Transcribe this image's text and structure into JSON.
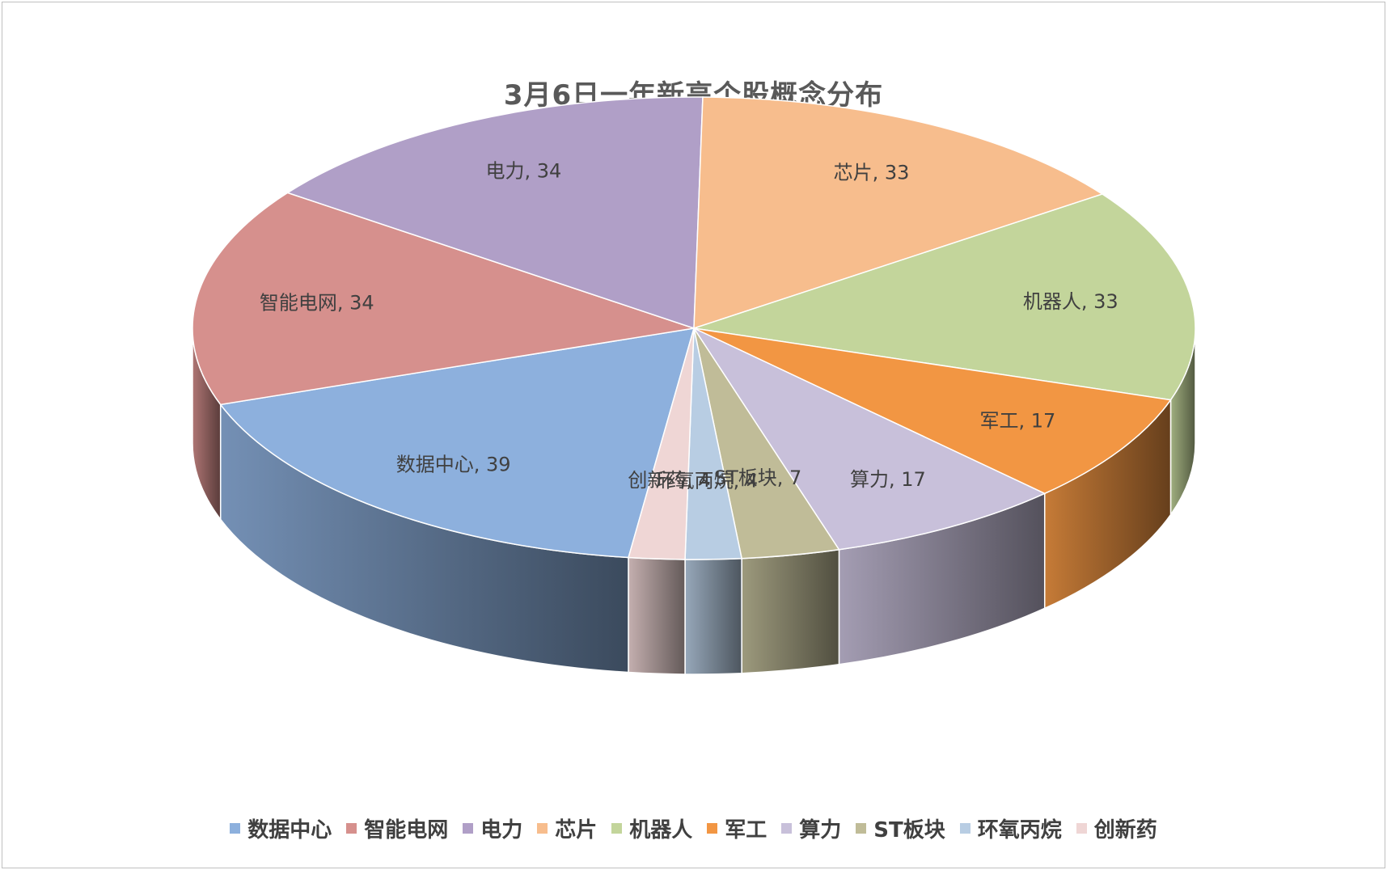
{
  "chart_data": {
    "type": "pie",
    "title": "3月6日一年新高个股概念分布",
    "legend_position": "bottom",
    "style": "3d",
    "slices": [
      {
        "label": "数据中心",
        "value": 39,
        "data_label": "数据中心, 39",
        "color": "#8db0dd"
      },
      {
        "label": "智能电网",
        "value": 34,
        "data_label": "智能电网, 34",
        "color": "#d6908d"
      },
      {
        "label": "电力",
        "value": 34,
        "data_label": "电力, 34",
        "color": "#b09fc7"
      },
      {
        "label": "芯片",
        "value": 33,
        "data_label": "芯片, 33",
        "color": "#f7bd8d"
      },
      {
        "label": "机器人",
        "value": 33,
        "data_label": "机器人, 33",
        "color": "#c3d59b"
      },
      {
        "label": "军工",
        "value": 17,
        "data_label": "军工, 17",
        "color": "#f29643"
      },
      {
        "label": "算力",
        "value": 17,
        "data_label": "算力, 17",
        "color": "#c8c0da"
      },
      {
        "label": "ST板块",
        "value": 7,
        "data_label": "ST板块, 7",
        "color": "#c0bc98"
      },
      {
        "label": "环氧丙烷",
        "value": 4,
        "data_label": "环氧丙烷, 4",
        "color": "#b8cde3"
      },
      {
        "label": "创新药",
        "value": 4,
        "data_label": "创新药, 4",
        "color": "#efd6d5"
      }
    ]
  }
}
